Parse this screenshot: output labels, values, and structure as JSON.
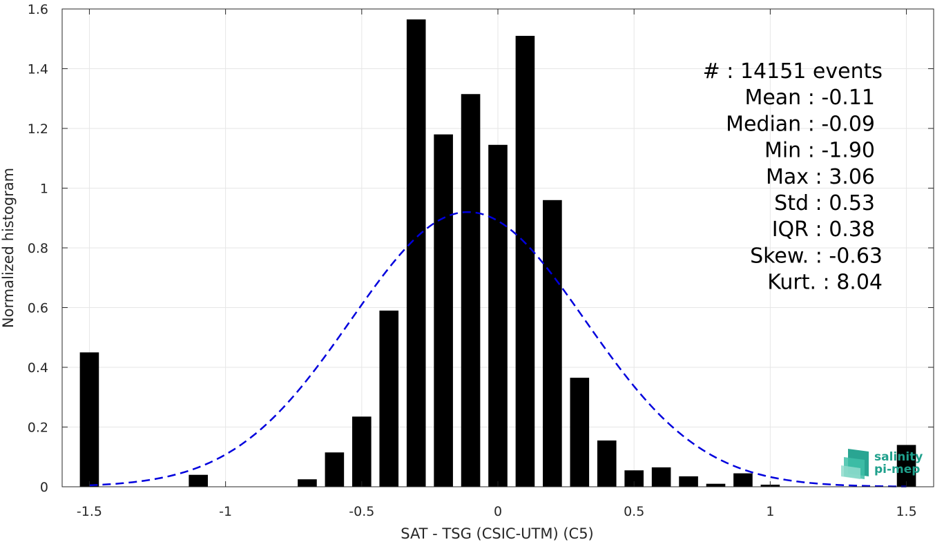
{
  "chart_data": {
    "type": "bar",
    "xlabel": "SAT - TSG (CSIC-UTM) (C5)",
    "ylabel": "Normalized histogram",
    "xlim": [
      -1.6,
      1.6
    ],
    "ylim": [
      0,
      1.6
    ],
    "xticks": [
      -1.5,
      -1,
      -0.5,
      0,
      0.5,
      1,
      1.5
    ],
    "xtick_labels": [
      "-1.5",
      "-1",
      "-0.5",
      "0",
      "0.5",
      "1",
      "1.5"
    ],
    "yticks": [
      0,
      0.2,
      0.4,
      0.6,
      0.8,
      1,
      1.2,
      1.4,
      1.6
    ],
    "ytick_labels": [
      "0",
      "0.2",
      "0.4",
      "0.6",
      "0.8",
      "1",
      "1.2",
      "1.4",
      "1.6"
    ],
    "grid": true,
    "bar_width": 0.07,
    "bar_color": "#000000",
    "bars": [
      {
        "x": -1.5,
        "value": 0.45
      },
      {
        "x": -1.4,
        "value": 0.0
      },
      {
        "x": -1.3,
        "value": 0.0
      },
      {
        "x": -1.2,
        "value": 0.0
      },
      {
        "x": -1.1,
        "value": 0.04
      },
      {
        "x": -1.0,
        "value": 0.0
      },
      {
        "x": -0.9,
        "value": 0.0
      },
      {
        "x": -0.8,
        "value": 0.0
      },
      {
        "x": -0.7,
        "value": 0.025
      },
      {
        "x": -0.6,
        "value": 0.115
      },
      {
        "x": -0.5,
        "value": 0.235
      },
      {
        "x": -0.4,
        "value": 0.59
      },
      {
        "x": -0.3,
        "value": 1.565
      },
      {
        "x": -0.2,
        "value": 1.18
      },
      {
        "x": -0.1,
        "value": 1.315
      },
      {
        "x": 0.0,
        "value": 1.145
      },
      {
        "x": 0.1,
        "value": 1.51
      },
      {
        "x": 0.2,
        "value": 0.96
      },
      {
        "x": 0.3,
        "value": 0.365
      },
      {
        "x": 0.4,
        "value": 0.155
      },
      {
        "x": 0.5,
        "value": 0.055
      },
      {
        "x": 0.6,
        "value": 0.065
      },
      {
        "x": 0.7,
        "value": 0.035
      },
      {
        "x": 0.8,
        "value": 0.01
      },
      {
        "x": 0.9,
        "value": 0.045
      },
      {
        "x": 1.0,
        "value": 0.007
      },
      {
        "x": 1.1,
        "value": 0.0
      },
      {
        "x": 1.2,
        "value": 0.0
      },
      {
        "x": 1.3,
        "value": 0.0
      },
      {
        "x": 1.4,
        "value": 0.0
      },
      {
        "x": 1.5,
        "value": 0.14
      }
    ],
    "fit_curve": {
      "style": "dashed",
      "color": "#0000dd",
      "mean": -0.11,
      "std": 0.43,
      "peak": 0.92,
      "x_range": [
        -1.5,
        1.5
      ]
    },
    "stats": [
      {
        "label": "#  : 14151 events",
        "anchor": "end-wide"
      },
      {
        "label": "Mean : -0.11",
        "anchor": "end"
      },
      {
        "label": "Median : -0.09",
        "anchor": "end"
      },
      {
        "label": "Min : -1.90",
        "anchor": "end"
      },
      {
        "label": "Max : 3.06",
        "anchor": "end"
      },
      {
        "label": "Std : 0.53",
        "anchor": "end"
      },
      {
        "label": "IQR : 0.38",
        "anchor": "end"
      },
      {
        "label": "Skew. : -0.63",
        "anchor": "end-wide"
      },
      {
        "label": "Kurt. : 8.04",
        "anchor": "end-wide"
      }
    ]
  },
  "logo": {
    "line1": "salinity",
    "line2": "pi-mep",
    "color": "#1fa08c"
  },
  "colors": {
    "axis": "#262626",
    "grid": "#e6e6e6"
  }
}
